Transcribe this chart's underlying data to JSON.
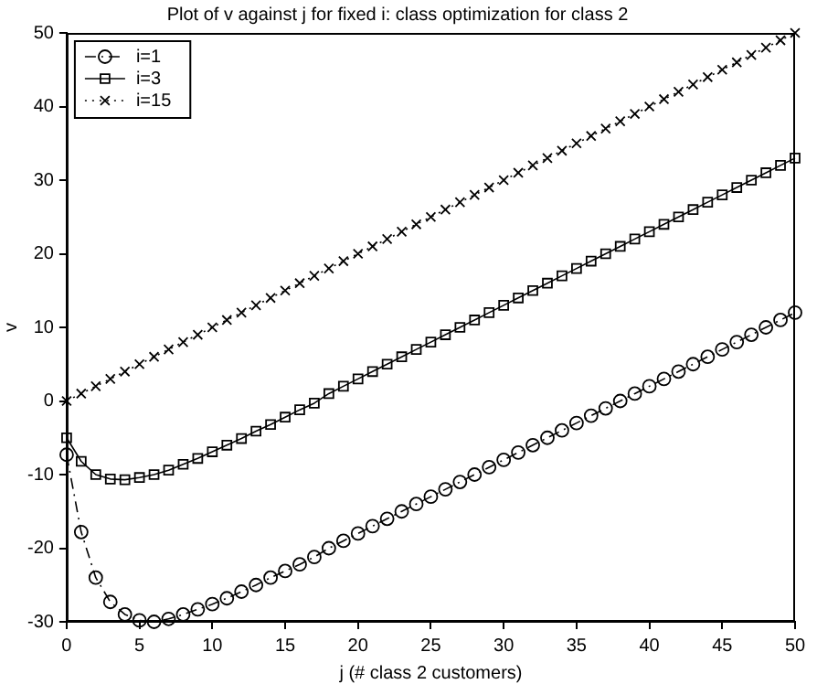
{
  "chart_data": {
    "type": "line",
    "title": "Plot of v against j for fixed i: class optimization for class 2",
    "xlabel": "j (# class 2 customers)",
    "ylabel": "v",
    "x": [
      0,
      1,
      2,
      3,
      4,
      5,
      6,
      7,
      8,
      9,
      10,
      11,
      12,
      13,
      14,
      15,
      16,
      17,
      18,
      19,
      20,
      21,
      22,
      23,
      24,
      25,
      26,
      27,
      28,
      29,
      30,
      31,
      32,
      33,
      34,
      35,
      36,
      37,
      38,
      39,
      40,
      41,
      42,
      43,
      44,
      45,
      46,
      47,
      48,
      49,
      50
    ],
    "series": [
      {
        "name": "i=1",
        "color": "#000000",
        "marker": "circle",
        "line_style": "dashed",
        "values": [
          -7.3,
          -17.8,
          -24,
          -27.3,
          -29,
          -29.8,
          -30,
          -29.6,
          -29,
          -28.3,
          -27.6,
          -26.8,
          -25.9,
          -25,
          -24,
          -23.1,
          -22.2,
          -21.2,
          -20,
          -19,
          -18,
          -17,
          -16,
          -15,
          -14,
          -13,
          -12,
          -11,
          -10,
          -9,
          -8,
          -7,
          -6,
          -5,
          -4,
          -3,
          -2,
          -1,
          0,
          1,
          2,
          3,
          4,
          5,
          6,
          7,
          8,
          9,
          10,
          11,
          12
        ]
      },
      {
        "name": "i=3",
        "color": "#000000",
        "marker": "square",
        "line_style": "solid",
        "values": [
          -5,
          -8.2,
          -10,
          -10.6,
          -10.7,
          -10.4,
          -10,
          -9.4,
          -8.6,
          -7.8,
          -6.9,
          -6,
          -5.1,
          -4.1,
          -3.2,
          -2.2,
          -1.2,
          -0.3,
          1,
          2,
          3,
          4,
          5,
          6,
          7,
          8,
          9,
          10,
          11,
          12,
          13,
          14,
          15,
          16,
          17,
          18,
          19,
          20,
          21,
          22,
          23,
          24,
          25,
          26,
          27,
          28,
          29,
          30,
          31,
          32,
          33
        ]
      },
      {
        "name": "i=15",
        "color": "#000000",
        "marker": "cross",
        "line_style": "dotted",
        "values": [
          0,
          1,
          2,
          3,
          4,
          5,
          6,
          7,
          8,
          9,
          10,
          11,
          12,
          13,
          14,
          15,
          16,
          17,
          18,
          19,
          20,
          21,
          22,
          23,
          24,
          25,
          26,
          27,
          28,
          29,
          30,
          31,
          32,
          33,
          34,
          35,
          36,
          37,
          38,
          39,
          40,
          41,
          42,
          43,
          44,
          45,
          46,
          47,
          48,
          49,
          50
        ]
      }
    ],
    "xlim": [
      0,
      50
    ],
    "xticks": [
      0,
      5,
      10,
      15,
      20,
      25,
      30,
      35,
      40,
      45,
      50
    ],
    "ylim": [
      -30,
      50
    ],
    "yticks": [
      -30,
      -20,
      -10,
      0,
      10,
      20,
      30,
      40,
      50
    ],
    "grid": false,
    "legend": "top left"
  }
}
